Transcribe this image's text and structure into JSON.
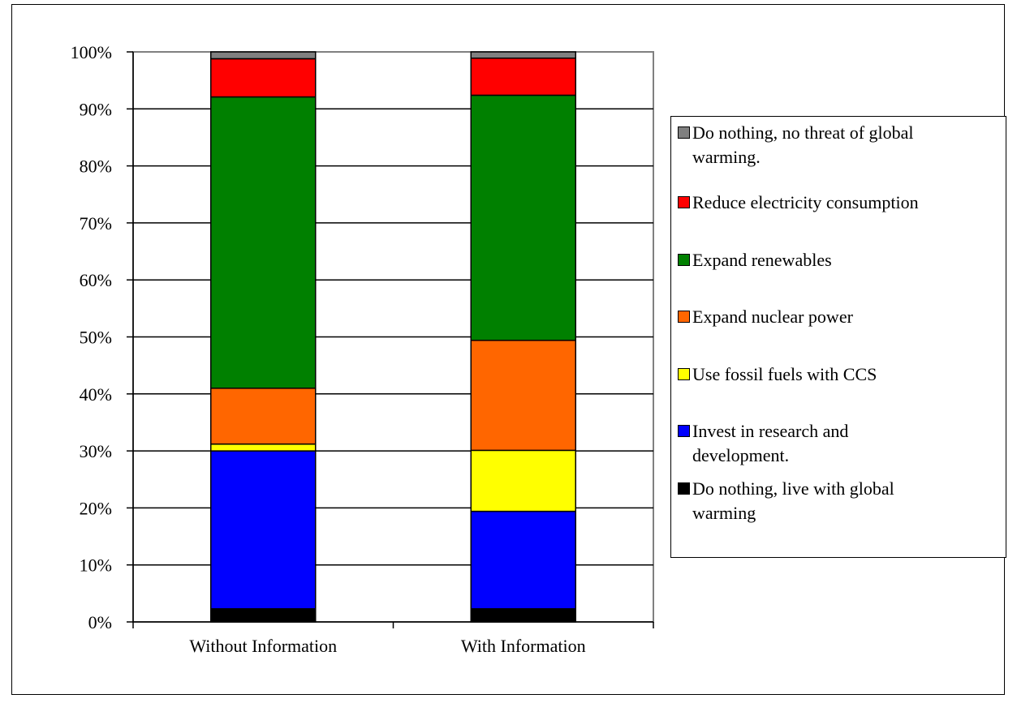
{
  "chart_data": {
    "type": "bar",
    "stacked": true,
    "categories": [
      "Without Information",
      "With Information"
    ],
    "y_ticks": [
      "0%",
      "10%",
      "20%",
      "30%",
      "40%",
      "50%",
      "60%",
      "70%",
      "80%",
      "90%",
      "100%"
    ],
    "ylim": [
      0,
      100
    ],
    "grid": true,
    "legend_position": "right",
    "series": [
      {
        "name": "Do nothing, live with global warming",
        "color": "#000000",
        "values": [
          2.3,
          2.3
        ]
      },
      {
        "name": "Invest in research and development.",
        "color": "#0000FF",
        "values": [
          27.7,
          17.1
        ]
      },
      {
        "name": "Use fossil fuels with CCS",
        "color": "#FFFF00",
        "values": [
          1.2,
          10.7
        ]
      },
      {
        "name": "Expand nuclear power",
        "color": "#FF6600",
        "values": [
          9.8,
          19.3
        ]
      },
      {
        "name": "Expand renewables",
        "color": "#008000",
        "values": [
          51.1,
          43.0
        ]
      },
      {
        "name": "Reduce electricity consumption",
        "color": "#FF0000",
        "values": [
          6.7,
          6.5
        ]
      },
      {
        "name": "Do nothing, no threat of global warming.",
        "color": "#808080",
        "values": [
          1.2,
          1.1
        ]
      }
    ]
  },
  "legend": [
    {
      "lines": [
        "Do nothing, no threat of global",
        "warming."
      ],
      "color": "#808080"
    },
    {
      "lines": [
        "Reduce electricity consumption"
      ],
      "color": "#FF0000"
    },
    {
      "lines": [
        "Expand renewables"
      ],
      "color": "#008000"
    },
    {
      "lines": [
        "Expand nuclear power"
      ],
      "color": "#FF6600"
    },
    {
      "lines": [
        "Use fossil fuels with CCS"
      ],
      "color": "#FFFF00"
    },
    {
      "lines": [
        "Invest in research and",
        "development."
      ],
      "color": "#0000FF"
    },
    {
      "lines": [
        "Do nothing, live with global",
        "warming"
      ],
      "color": "#000000"
    }
  ]
}
